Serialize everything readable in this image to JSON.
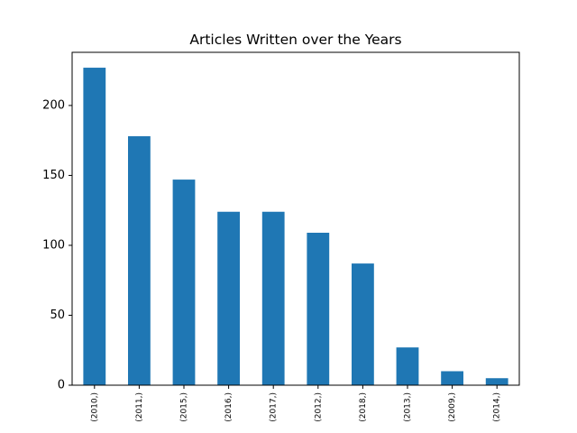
{
  "chart_data": {
    "type": "bar",
    "title": "Articles Written over the Years",
    "xlabel": "",
    "ylabel": "",
    "categories": [
      "(2010,)",
      "(2011,)",
      "(2015,)",
      "(2016,)",
      "(2017,)",
      "(2012,)",
      "(2018,)",
      "(2013,)",
      "(2009,)",
      "(2014,)"
    ],
    "values": [
      227,
      178,
      147,
      124,
      124,
      109,
      87,
      27,
      10,
      5
    ],
    "ylim": [
      0,
      238
    ],
    "yticks": [
      0,
      50,
      100,
      150,
      200
    ],
    "bar_color": "#1f77b4",
    "grid": false
  }
}
